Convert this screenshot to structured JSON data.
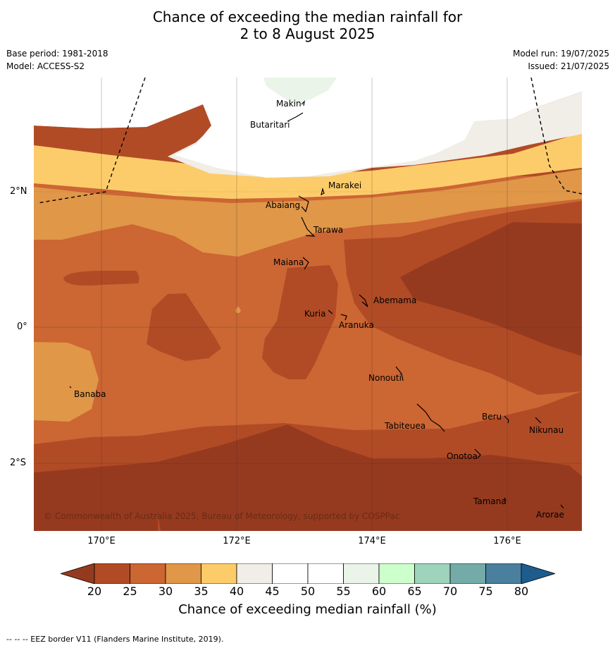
{
  "title_line1": "Chance of exceeding the median rainfall for",
  "title_line2": "2 to 8 August 2025",
  "meta_left": [
    "Base period: 1981-2018",
    "Model: ACCESS-S2"
  ],
  "meta_right": [
    "Model run: 19/07/2025",
    "Issued: 21/07/2025"
  ],
  "copyright": "© Commonwealth of Australia 2025, Bureau of Meteorology, supported by COSPPac",
  "lat_labels": [
    "2°N",
    "0°",
    "2°S"
  ],
  "lon_labels": [
    "170°E",
    "172°E",
    "174°E",
    "176°E"
  ],
  "islands": [
    "Makin",
    "Butaritari",
    "Marakei",
    "Abaiang",
    "Tarawa",
    "Maiana",
    "Abemama",
    "Kuria",
    "Aranuka",
    "Banaba",
    "Nonouti",
    "Beru",
    "Nikunau",
    "Tabiteuea",
    "Onotoa",
    "Tamana",
    "Arorae"
  ],
  "colorbar": {
    "ticks": [
      "20",
      "25",
      "30",
      "35",
      "40",
      "45",
      "50",
      "55",
      "60",
      "65",
      "70",
      "75",
      "80"
    ],
    "colors": [
      "#963a1f",
      "#b14b26",
      "#cc6633",
      "#e09748",
      "#fdcc6a",
      "#f1ede7",
      "#ffffff",
      "#ffffff",
      "#eaf4e8",
      "#ccffcc",
      "#9ed3bc",
      "#74aaa8",
      "#4a7f9e",
      "#1f5c8e"
    ],
    "label": "Chance of exceeding median rainfall (%)"
  },
  "footnote": "--  --  -- EEZ border V11 (Flanders Marine Institute, 2019).",
  "colors": {
    "c15_20": "#963a1f",
    "c20_25": "#b14b26",
    "c25_30": "#cc6633",
    "c30_35": "#e09748",
    "c35_40": "#fdcc6a",
    "c40_45": "#f1ede7",
    "c45_55": "#ffffff",
    "c55_60": "#eaf4e8"
  }
}
